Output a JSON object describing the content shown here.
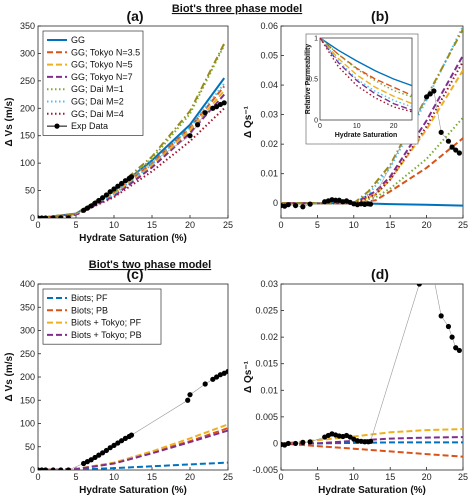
{
  "figure": {
    "top_title": "Biot's three phase model",
    "bottom_title": "Biot's two phase model"
  },
  "chart_data": [
    {
      "id": "a",
      "letter": "(a)",
      "type": "line",
      "title": "",
      "xlabel": "Hydrate Saturation (%)",
      "ylabel": "Δ Vs (m/s)",
      "xlim": [
        0,
        25
      ],
      "ylim": [
        0,
        350
      ],
      "xticks": [
        0,
        5,
        10,
        15,
        20,
        25
      ],
      "yticks": [
        0,
        50,
        100,
        150,
        200,
        250,
        300,
        350
      ],
      "grid": false,
      "legend_position": "top-left",
      "series": [
        {
          "name": "GG",
          "color": "#0072BD",
          "dash": "solid",
          "x": [
            0,
            5,
            10,
            15,
            20,
            24.5
          ],
          "y": [
            0,
            8,
            50,
            105,
            170,
            255
          ]
        },
        {
          "name": "GG; Tokyo N=3.5",
          "color": "#D95319",
          "dash": "dash",
          "x": [
            0,
            5,
            10,
            15,
            20,
            24.5
          ],
          "y": [
            0,
            7,
            45,
            100,
            165,
            240
          ]
        },
        {
          "name": "GG; Tokyo N=5",
          "color": "#EDB120",
          "dash": "dash",
          "x": [
            0,
            5,
            10,
            15,
            20,
            24.5
          ],
          "y": [
            0,
            7,
            43,
            96,
            160,
            232
          ]
        },
        {
          "name": "GG; Tokyo N=7",
          "color": "#7E2F8E",
          "dash": "dash",
          "x": [
            0,
            5,
            10,
            15,
            20,
            24.5
          ],
          "y": [
            0,
            6,
            40,
            92,
            155,
            225
          ]
        },
        {
          "name": "GG; Dai M=1",
          "color": "#77AC30",
          "dash": "dot",
          "x": [
            0,
            5,
            10,
            15,
            20,
            24.5
          ],
          "y": [
            0,
            7,
            47,
            108,
            190,
            315
          ]
        },
        {
          "name": "GG; Dai M=2",
          "color": "#4DBEEE",
          "dash": "dot",
          "x": [
            0,
            5,
            10,
            15,
            20,
            24.5
          ],
          "y": [
            0,
            7,
            43,
            98,
            165,
            245
          ]
        },
        {
          "name": "GG; Dai M=4",
          "color": "#A2142F",
          "dash": "dot",
          "x": [
            0,
            5,
            10,
            15,
            20,
            24.5
          ],
          "y": [
            0,
            6,
            38,
            85,
            140,
            200
          ]
        },
        {
          "name": "",
          "color": "#9a8a1a",
          "dash": "dashdot",
          "x": [
            0,
            5,
            10,
            15,
            20,
            24.5
          ],
          "y": [
            0,
            8,
            52,
            112,
            195,
            318
          ]
        },
        {
          "name": "Exp Data",
          "color": "#000000",
          "dash": "marker",
          "x": [
            0,
            0.5,
            1,
            2,
            3,
            4,
            6,
            6.5,
            7,
            7.5,
            8,
            8.5,
            9,
            9.5,
            10,
            10.5,
            11,
            11.5,
            12,
            12.3,
            20,
            21,
            22,
            23,
            23.5,
            24,
            24.5
          ],
          "y": [
            0,
            0,
            0,
            0,
            0,
            0,
            14,
            18,
            22,
            27,
            32,
            37,
            42,
            48,
            53,
            58,
            63,
            68,
            72,
            75,
            150,
            170,
            192,
            200,
            203,
            207,
            210
          ]
        }
      ]
    },
    {
      "id": "b",
      "letter": "(b)",
      "type": "line",
      "title": "",
      "xlabel": "",
      "ylabel": "Δ Qs⁻¹",
      "xlim": [
        0,
        25
      ],
      "ylim": [
        -0.005,
        0.06
      ],
      "xticks": [
        0,
        5,
        10,
        15,
        20,
        25
      ],
      "yticks": [
        0,
        0.01,
        0.02,
        0.03,
        0.04,
        0.05,
        0.06
      ],
      "grid": false,
      "series": [
        {
          "name": "GG",
          "color": "#0072BD",
          "dash": "solid",
          "x": [
            0,
            5,
            10,
            15,
            20,
            25
          ],
          "y": [
            0,
            0,
            0,
            -0.0003,
            -0.0005,
            -0.0008
          ]
        },
        {
          "name": "GG; Tokyo N=3.5",
          "color": "#D95319",
          "dash": "dash",
          "x": [
            0,
            5,
            10,
            13,
            15,
            20,
            25
          ],
          "y": [
            0,
            0,
            0,
            0.001,
            0.004,
            0.012,
            0.022
          ]
        },
        {
          "name": "GG; Tokyo N=5",
          "color": "#EDB120",
          "dash": "dash",
          "x": [
            0,
            5,
            10,
            13,
            15,
            20,
            25
          ],
          "y": [
            0,
            0,
            0,
            0.003,
            0.008,
            0.025,
            0.045
          ]
        },
        {
          "name": "GG; Tokyo N=7",
          "color": "#7E2F8E",
          "dash": "dash",
          "x": [
            0,
            5,
            10,
            13,
            15,
            20,
            25
          ],
          "y": [
            0,
            0,
            0,
            0.004,
            0.009,
            0.028,
            0.05
          ]
        },
        {
          "name": "GG; Dai M=1",
          "color": "#77AC30",
          "dash": "dot",
          "x": [
            0,
            5,
            10,
            13,
            15,
            20,
            25
          ],
          "y": [
            0,
            0,
            0,
            0.002,
            0.005,
            0.015,
            0.029
          ]
        },
        {
          "name": "GG; Dai M=2",
          "color": "#4DBEEE",
          "dash": "dot",
          "x": [
            0,
            5,
            10,
            12,
            15,
            20,
            25
          ],
          "y": [
            0,
            0,
            0,
            0.003,
            0.012,
            0.035,
            0.06
          ]
        },
        {
          "name": "GG; Dai M=4",
          "color": "#A2142F",
          "dash": "dot",
          "x": [
            0,
            5,
            10,
            13,
            15,
            20,
            25
          ],
          "y": [
            0,
            0,
            0,
            0.003,
            0.008,
            0.026,
            0.048
          ]
        },
        {
          "name": "",
          "color": "#9a8a1a",
          "dash": "dashdot",
          "x": [
            0,
            5,
            10,
            12,
            15,
            20,
            25
          ],
          "y": [
            0,
            0,
            0,
            0.004,
            0.013,
            0.036,
            0.059
          ]
        },
        {
          "name": "Exp Data",
          "color": "#000000",
          "dash": "marker",
          "x": [
            0,
            0.5,
            1,
            2,
            3,
            4,
            6,
            6.5,
            7,
            7.5,
            8,
            8.5,
            9,
            9.5,
            10,
            10.5,
            11,
            11.5,
            12,
            12.3,
            20,
            20.5,
            21,
            22,
            23,
            23.5,
            24,
            24.5
          ],
          "y": [
            -0.0008,
            -0.001,
            -0.0005,
            -0.0008,
            -0.0012,
            -0.0003,
            0.0005,
            0.0008,
            0.0012,
            0.001,
            0.001,
            0.0005,
            0.0008,
            0.0003,
            -0.0002,
            -0.0005,
            -0.0002,
            -0.0004,
            -0.0002,
            -0.0003,
            0.036,
            0.037,
            0.038,
            0.024,
            0.021,
            0.019,
            0.018,
            0.017
          ]
        }
      ],
      "inset": {
        "xlabel": "Hydrate Saturation",
        "ylabel": "Relative Permeability",
        "xlim": [
          0,
          25
        ],
        "ylim": [
          0,
          1
        ],
        "xticks": [
          0,
          10,
          20
        ],
        "yticks": [
          0,
          0.5,
          1
        ],
        "series": [
          {
            "color": "#0072BD",
            "dash": "solid",
            "x": [
              0,
              5,
              10,
              15,
              20,
              25
            ],
            "y": [
              1,
              0.85,
              0.72,
              0.6,
              0.5,
              0.42
            ]
          },
          {
            "color": "#D95319",
            "dash": "dash",
            "x": [
              0,
              5,
              10,
              15,
              20,
              25
            ],
            "y": [
              1,
              0.8,
              0.63,
              0.5,
              0.4,
              0.3
            ]
          },
          {
            "color": "#EDB120",
            "dash": "dash",
            "x": [
              0,
              5,
              10,
              15,
              20,
              25
            ],
            "y": [
              1,
              0.75,
              0.55,
              0.4,
              0.29,
              0.2
            ]
          },
          {
            "color": "#7E2F8E",
            "dash": "dash",
            "x": [
              0,
              5,
              10,
              15,
              20,
              25
            ],
            "y": [
              1,
              0.7,
              0.48,
              0.32,
              0.2,
              0.12
            ]
          },
          {
            "color": "#77AC30",
            "dash": "dot",
            "x": [
              0,
              5,
              10,
              15,
              20,
              25
            ],
            "y": [
              1,
              0.8,
              0.62,
              0.48,
              0.36,
              0.28
            ]
          },
          {
            "color": "#4DBEEE",
            "dash": "dot",
            "x": [
              0,
              5,
              10,
              15,
              20,
              25
            ],
            "y": [
              1,
              0.72,
              0.5,
              0.35,
              0.24,
              0.16
            ]
          },
          {
            "color": "#A2142F",
            "dash": "dot",
            "x": [
              0,
              5,
              10,
              15,
              20,
              25
            ],
            "y": [
              1,
              0.65,
              0.42,
              0.27,
              0.16,
              0.1
            ]
          }
        ]
      }
    },
    {
      "id": "c",
      "letter": "(c)",
      "type": "line",
      "title": "",
      "xlabel": "Hydrate Saturation (%)",
      "ylabel": "Δ Vs (m/s)",
      "xlim": [
        0,
        25
      ],
      "ylim": [
        0,
        400
      ],
      "xticks": [
        0,
        5,
        10,
        15,
        20,
        25
      ],
      "yticks": [
        0,
        50,
        100,
        150,
        200,
        250,
        300,
        350,
        400
      ],
      "grid": false,
      "legend_position": "top-left",
      "series": [
        {
          "name": "Biots; PF",
          "color": "#0072BD",
          "dash": "dash",
          "x": [
            0,
            5,
            10,
            15,
            20,
            25
          ],
          "y": [
            0,
            1,
            4,
            8,
            12,
            16
          ]
        },
        {
          "name": "Biots; PB",
          "color": "#D95319",
          "dash": "dash",
          "x": [
            0,
            5,
            10,
            15,
            20,
            25
          ],
          "y": [
            0,
            2,
            15,
            38,
            62,
            90
          ]
        },
        {
          "name": "Biots + Tokyo; PF",
          "color": "#EDB120",
          "dash": "dash",
          "x": [
            0,
            5,
            10,
            15,
            20,
            25
          ],
          "y": [
            0,
            2,
            16,
            40,
            68,
            98
          ]
        },
        {
          "name": "Biots + Tokyo; PB",
          "color": "#7E2F8E",
          "dash": "dash",
          "x": [
            0,
            5,
            10,
            15,
            20,
            25
          ],
          "y": [
            0,
            2,
            14,
            36,
            60,
            85
          ]
        },
        {
          "name": "",
          "color": "#000000",
          "dash": "marker",
          "x": [
            0,
            0.5,
            1,
            2,
            3,
            4,
            6,
            6.5,
            7,
            7.5,
            8,
            8.5,
            9,
            9.5,
            10,
            10.5,
            11,
            11.5,
            12,
            12.3,
            19.7,
            20,
            22,
            23,
            23.5,
            24,
            24.5,
            25
          ],
          "y": [
            0,
            0,
            0,
            0,
            0,
            0,
            14,
            18,
            22,
            27,
            32,
            37,
            42,
            48,
            53,
            58,
            63,
            68,
            72,
            75,
            150,
            162,
            185,
            195,
            200,
            205,
            208,
            212
          ]
        }
      ]
    },
    {
      "id": "d",
      "letter": "(d)",
      "type": "line",
      "title": "",
      "xlabel": "Hydrate Saturation (%)",
      "ylabel": "Δ Qs⁻¹",
      "xlim": [
        0,
        25
      ],
      "ylim": [
        -0.005,
        0.03
      ],
      "xticks": [
        0,
        5,
        10,
        15,
        20,
        25
      ],
      "yticks": [
        -0.005,
        0,
        0.005,
        0.01,
        0.015,
        0.02,
        0.025,
        0.03
      ],
      "grid": false,
      "series": [
        {
          "name": "Biots; PF",
          "color": "#0072BD",
          "dash": "dash",
          "x": [
            0,
            5,
            10,
            15,
            20,
            25
          ],
          "y": [
            0,
            0,
            0.0001,
            0.0002,
            0.0002,
            0.0002
          ]
        },
        {
          "name": "Biots; PB",
          "color": "#D95319",
          "dash": "dash",
          "x": [
            0,
            5,
            10,
            15,
            20,
            25
          ],
          "y": [
            0,
            -0.0005,
            -0.001,
            -0.0015,
            -0.002,
            -0.0025
          ]
        },
        {
          "name": "Biots + Tokyo; PF",
          "color": "#EDB120",
          "dash": "dash",
          "x": [
            0,
            5,
            10,
            15,
            20,
            25
          ],
          "y": [
            0,
            0.0006,
            0.0013,
            0.0021,
            0.0025,
            0.0027
          ]
        },
        {
          "name": "Biots + Tokyo; PB",
          "color": "#7E2F8E",
          "dash": "dash",
          "x": [
            0,
            5,
            10,
            15,
            20,
            25
          ],
          "y": [
            0,
            0,
            0.0005,
            0.0009,
            0.0011,
            0.0012
          ]
        },
        {
          "name": "",
          "color": "#000000",
          "dash": "marker",
          "x": [
            0,
            0.5,
            1,
            2,
            3,
            4,
            6,
            6.5,
            7,
            7.5,
            8,
            8.5,
            9,
            9.5,
            10,
            10.5,
            11,
            11.5,
            12,
            12.3,
            19,
            20,
            21,
            22,
            23,
            23.5,
            24,
            24.5
          ],
          "y": [
            -0.0002,
            -0.0003,
            0,
            0,
            0.0002,
            0.0003,
            0.0012,
            0.0015,
            0.0018,
            0.0016,
            0.0014,
            0.0013,
            0.0015,
            0.0012,
            0.0008,
            0.0005,
            0.0004,
            0.0003,
            0.0003,
            0.0004,
            0.03,
            0.031,
            0.031,
            0.024,
            0.022,
            0.02,
            0.018,
            0.0175
          ]
        }
      ]
    }
  ]
}
